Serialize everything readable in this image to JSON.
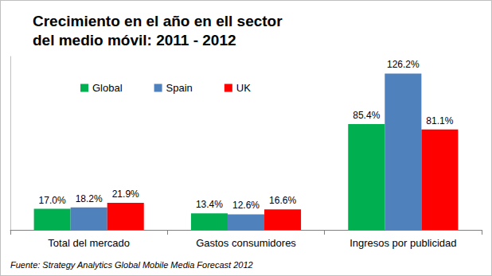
{
  "chart_data": {
    "type": "bar",
    "title": "Crecimiento en el año en ell sector\ndel medio móvil: 2011 - 2012",
    "annotation": "Fuente: Strategy Analytics Global Mobile Media Forecast 2012",
    "categories": [
      "Total del mercado",
      "Gastos consumidores",
      "Ingresos por publicidad"
    ],
    "series": [
      {
        "name": "Global",
        "color": "#00b050",
        "values": [
          17.0,
          13.4,
          85.4
        ],
        "value_labels": [
          "17.0%",
          "13.4%",
          "85.4%"
        ]
      },
      {
        "name": "Spain",
        "color": "#4f81bd",
        "values": [
          18.2,
          12.6,
          126.2
        ],
        "value_labels": [
          "18.2%",
          "12.6%",
          "126.2%"
        ]
      },
      {
        "name": "UK",
        "color": "#ff0000",
        "values": [
          21.9,
          16.6,
          81.1
        ],
        "value_labels": [
          "21.9%",
          "16.6%",
          "81.1%"
        ]
      }
    ],
    "ylim": [
      0,
      140
    ],
    "grid": false,
    "legend": "top",
    "data_labels": true,
    "tick_labels": "x"
  }
}
